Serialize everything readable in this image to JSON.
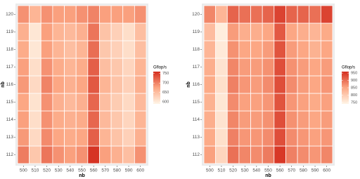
{
  "chart_data": [
    {
      "type": "heatmap",
      "x": [
        500,
        510,
        520,
        530,
        540,
        550,
        560,
        570,
        580,
        590,
        600
      ],
      "y": [
        112,
        113,
        114,
        115,
        116,
        117,
        118,
        119,
        120
      ],
      "x_label": "nb",
      "y_label": "nb",
      "legend_title": "Gflop/s",
      "fill_lim": [
        590,
        760
      ],
      "legend_ticks": [
        600,
        650,
        700,
        750
      ],
      "colors": [
        "#fff5e6",
        "#fca784",
        "#d42d1e"
      ],
      "values": [
        [
          705,
          640,
          710,
          690,
          680,
          690,
          755,
          680,
          665,
          650,
          690
        ],
        [
          685,
          620,
          695,
          675,
          670,
          675,
          725,
          660,
          645,
          630,
          665
        ],
        [
          680,
          615,
          690,
          670,
          665,
          670,
          720,
          655,
          640,
          625,
          660
        ],
        [
          675,
          610,
          690,
          665,
          655,
          665,
          720,
          650,
          635,
          620,
          655
        ],
        [
          685,
          620,
          700,
          675,
          665,
          675,
          730,
          660,
          645,
          630,
          665
        ],
        [
          680,
          615,
          690,
          670,
          660,
          670,
          725,
          650,
          640,
          625,
          660
        ],
        [
          670,
          605,
          680,
          660,
          650,
          660,
          715,
          640,
          630,
          615,
          650
        ],
        [
          665,
          605,
          680,
          660,
          655,
          665,
          710,
          645,
          630,
          615,
          650
        ],
        [
          690,
          660,
          690,
          680,
          680,
          690,
          700,
          680,
          680,
          680,
          690
        ]
      ]
    },
    {
      "type": "heatmap",
      "x": [
        500,
        510,
        520,
        530,
        540,
        550,
        560,
        570,
        580,
        590,
        600
      ],
      "y": [
        112,
        113,
        114,
        115,
        116,
        117,
        118,
        119,
        120
      ],
      "x_label": "nb",
      "y_label": "nb",
      "legend_title": "Gflop/s",
      "fill_lim": [
        740,
        960
      ],
      "legend_ticks": [
        750,
        800,
        850,
        900,
        950
      ],
      "colors": [
        "#fff5e6",
        "#fca784",
        "#d42d1e"
      ],
      "values": [
        [
          855,
          785,
          900,
          880,
          875,
          890,
          950,
          885,
          875,
          865,
          880
        ],
        [
          845,
          770,
          885,
          865,
          865,
          875,
          930,
          875,
          865,
          855,
          865
        ],
        [
          840,
          765,
          880,
          860,
          860,
          870,
          930,
          870,
          860,
          850,
          860
        ],
        [
          835,
          760,
          875,
          855,
          855,
          865,
          925,
          865,
          855,
          845,
          855
        ],
        [
          845,
          770,
          885,
          865,
          860,
          875,
          930,
          875,
          860,
          850,
          865
        ],
        [
          840,
          765,
          880,
          860,
          860,
          870,
          930,
          870,
          860,
          850,
          860
        ],
        [
          830,
          755,
          870,
          850,
          850,
          860,
          925,
          860,
          850,
          835,
          850
        ],
        [
          820,
          750,
          860,
          840,
          840,
          850,
          920,
          850,
          840,
          830,
          845
        ],
        [
          880,
          830,
          910,
          900,
          900,
          910,
          940,
          910,
          910,
          900,
          940
        ]
      ]
    }
  ]
}
